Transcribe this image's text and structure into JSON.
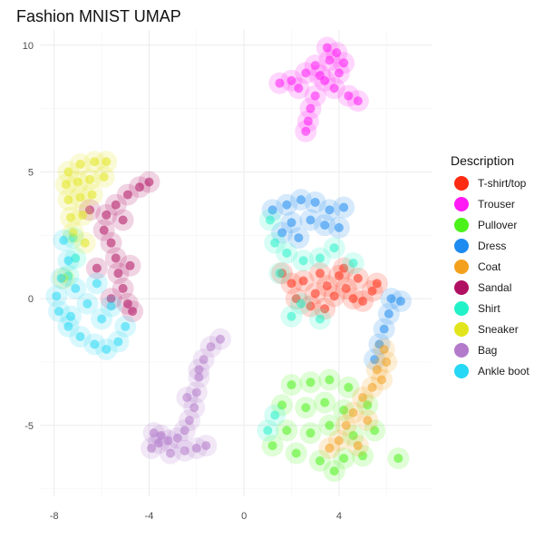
{
  "chart_data": {
    "type": "scatter",
    "title": "Fashion MNIST UMAP",
    "xlabel": "",
    "ylabel": "",
    "xlim": [
      -8.6,
      7.9
    ],
    "ylim": [
      -7.8,
      10.6
    ],
    "x_ticks": [
      -8,
      -4,
      0,
      4
    ],
    "y_ticks": [
      -5,
      0,
      5,
      10
    ],
    "grid": true,
    "legend": {
      "title": "Description",
      "position": "right"
    },
    "series": [
      {
        "name": "T-shirt/top",
        "color": "#FF2A12",
        "centroid": [
          4.0,
          0.5
        ],
        "points": [
          [
            2.5,
            0.7
          ],
          [
            3.2,
            1.0
          ],
          [
            4.0,
            0.9
          ],
          [
            4.8,
            0.8
          ],
          [
            5.4,
            0.3
          ],
          [
            3.0,
            0.2
          ],
          [
            3.8,
            0.1
          ],
          [
            4.6,
            0.0
          ],
          [
            2.0,
            0.6
          ],
          [
            3.5,
            0.5
          ],
          [
            4.3,
            0.4
          ],
          [
            1.6,
            1.0
          ],
          [
            2.8,
            -0.3
          ],
          [
            5.0,
            -0.1
          ],
          [
            4.2,
            1.2
          ],
          [
            3.4,
            -0.4
          ],
          [
            2.2,
            0.0
          ],
          [
            5.6,
            0.6
          ]
        ]
      },
      {
        "name": "Trouser",
        "color": "#FF1AF5",
        "centroid": [
          3.3,
          8.4
        ],
        "points": [
          [
            1.5,
            8.5
          ],
          [
            2.0,
            8.6
          ],
          [
            2.6,
            8.9
          ],
          [
            3.0,
            9.2
          ],
          [
            3.6,
            9.4
          ],
          [
            3.9,
            9.7
          ],
          [
            4.2,
            9.3
          ],
          [
            3.4,
            8.6
          ],
          [
            3.8,
            8.3
          ],
          [
            4.4,
            8.0
          ],
          [
            4.8,
            7.8
          ],
          [
            3.0,
            8.0
          ],
          [
            2.8,
            7.5
          ],
          [
            2.7,
            7.0
          ],
          [
            2.6,
            6.6
          ],
          [
            2.3,
            8.3
          ],
          [
            3.5,
            9.9
          ],
          [
            4.0,
            8.9
          ],
          [
            3.2,
            8.8
          ]
        ]
      },
      {
        "name": "Pullover",
        "color": "#4BF21A",
        "centroid": [
          3.2,
          -4.8
        ],
        "points": [
          [
            2.0,
            -3.4
          ],
          [
            2.8,
            -3.3
          ],
          [
            3.6,
            -3.2
          ],
          [
            4.4,
            -3.5
          ],
          [
            1.6,
            -4.2
          ],
          [
            2.6,
            -4.3
          ],
          [
            3.4,
            -4.1
          ],
          [
            4.2,
            -4.4
          ],
          [
            5.2,
            -4.2
          ],
          [
            1.8,
            -5.2
          ],
          [
            2.8,
            -5.3
          ],
          [
            3.6,
            -5.0
          ],
          [
            4.6,
            -5.4
          ],
          [
            5.5,
            -5.2
          ],
          [
            2.2,
            -6.1
          ],
          [
            3.2,
            -6.4
          ],
          [
            4.2,
            -6.3
          ],
          [
            5.0,
            -6.2
          ],
          [
            1.2,
            -5.8
          ],
          [
            3.8,
            -6.8
          ],
          [
            6.5,
            -6.3
          ]
        ]
      },
      {
        "name": "Dress",
        "color": "#1E8BF0",
        "centroid": [
          3.0,
          2.9
        ],
        "points": [
          [
            1.2,
            3.5
          ],
          [
            1.8,
            3.7
          ],
          [
            2.4,
            3.9
          ],
          [
            3.0,
            3.8
          ],
          [
            3.6,
            3.5
          ],
          [
            4.2,
            3.6
          ],
          [
            2.0,
            3.0
          ],
          [
            2.8,
            3.1
          ],
          [
            3.4,
            2.9
          ],
          [
            1.6,
            2.6
          ],
          [
            2.3,
            2.4
          ],
          [
            4.0,
            2.8
          ],
          [
            6.2,
            0.0
          ],
          [
            6.6,
            -0.1
          ],
          [
            6.1,
            -0.6
          ],
          [
            5.9,
            -1.2
          ],
          [
            5.7,
            -1.8
          ],
          [
            5.5,
            -2.4
          ]
        ]
      },
      {
        "name": "Coat",
        "color": "#F3A01C",
        "centroid": [
          4.4,
          -4.5
        ],
        "points": [
          [
            5.6,
            -2.8
          ],
          [
            5.4,
            -3.5
          ],
          [
            5.0,
            -3.9
          ],
          [
            4.6,
            -4.5
          ],
          [
            4.3,
            -5.0
          ],
          [
            5.2,
            -4.8
          ],
          [
            5.8,
            -3.2
          ],
          [
            4.0,
            -5.6
          ],
          [
            3.6,
            -5.9
          ],
          [
            4.8,
            -5.8
          ],
          [
            6.0,
            -2.5
          ],
          [
            5.9,
            -2.0
          ]
        ]
      },
      {
        "name": "Sandal",
        "color": "#B01062",
        "centroid": [
          -5.8,
          2.3
        ],
        "points": [
          [
            -4.0,
            4.6
          ],
          [
            -4.4,
            4.4
          ],
          [
            -4.9,
            4.1
          ],
          [
            -5.4,
            3.7
          ],
          [
            -5.8,
            3.3
          ],
          [
            -5.9,
            2.7
          ],
          [
            -5.6,
            2.2
          ],
          [
            -5.4,
            1.6
          ],
          [
            -5.3,
            1.0
          ],
          [
            -5.1,
            0.4
          ],
          [
            -4.9,
            -0.2
          ],
          [
            -4.7,
            -0.5
          ],
          [
            -6.2,
            1.2
          ],
          [
            -6.5,
            3.5
          ],
          [
            -5.1,
            3.1
          ],
          [
            -4.8,
            1.3
          ],
          [
            -5.6,
            0.0
          ]
        ]
      },
      {
        "name": "Shirt",
        "color": "#22F2C8",
        "centroid": [
          2.8,
          0.8
        ],
        "points": [
          [
            1.3,
            2.2
          ],
          [
            1.8,
            1.8
          ],
          [
            2.5,
            1.5
          ],
          [
            3.2,
            1.6
          ],
          [
            3.8,
            2.0
          ],
          [
            1.5,
            1.0
          ],
          [
            2.4,
            -0.2
          ],
          [
            2.0,
            -0.7
          ],
          [
            3.2,
            -0.8
          ],
          [
            1.1,
            3.1
          ],
          [
            -7.1,
            1.6
          ],
          [
            -7.4,
            0.9
          ],
          [
            1.3,
            -4.6
          ],
          [
            1.0,
            -5.2
          ],
          [
            -7.2,
            2.4
          ],
          [
            4.6,
            1.4
          ]
        ]
      },
      {
        "name": "Sneaker",
        "color": "#E2E51C",
        "centroid": [
          -6.5,
          4.4
        ],
        "points": [
          [
            -7.4,
            5.0
          ],
          [
            -6.9,
            5.3
          ],
          [
            -6.3,
            5.4
          ],
          [
            -5.8,
            5.4
          ],
          [
            -7.5,
            4.5
          ],
          [
            -7.0,
            4.6
          ],
          [
            -6.5,
            4.7
          ],
          [
            -5.9,
            4.8
          ],
          [
            -7.4,
            3.9
          ],
          [
            -6.9,
            4.0
          ],
          [
            -6.4,
            4.1
          ],
          [
            -7.3,
            3.2
          ],
          [
            -6.8,
            3.3
          ],
          [
            -7.2,
            2.6
          ],
          [
            -6.7,
            2.2
          ],
          [
            -7.6,
            0.8
          ]
        ]
      },
      {
        "name": "Bag",
        "color": "#B37ACB",
        "centroid": [
          -2.5,
          -4.7
        ],
        "points": [
          [
            -1.0,
            -1.6
          ],
          [
            -1.4,
            -1.9
          ],
          [
            -1.7,
            -2.4
          ],
          [
            -1.9,
            -3.1
          ],
          [
            -2.0,
            -3.7
          ],
          [
            -2.1,
            -4.3
          ],
          [
            -2.3,
            -4.8
          ],
          [
            -2.5,
            -5.2
          ],
          [
            -2.8,
            -5.5
          ],
          [
            -3.2,
            -5.6
          ],
          [
            -3.6,
            -5.7
          ],
          [
            -3.9,
            -5.9
          ],
          [
            -3.1,
            -6.1
          ],
          [
            -2.5,
            -6.0
          ],
          [
            -2.0,
            -5.9
          ],
          [
            -1.6,
            -5.8
          ],
          [
            -1.9,
            -2.8
          ],
          [
            -2.4,
            -3.9
          ],
          [
            -3.5,
            -5.4
          ],
          [
            -3.8,
            -5.3
          ]
        ]
      },
      {
        "name": "Ankle boot",
        "color": "#25D8F5",
        "centroid": [
          -6.8,
          -0.3
        ],
        "points": [
          [
            -7.6,
            2.3
          ],
          [
            -7.4,
            1.5
          ],
          [
            -7.7,
            0.8
          ],
          [
            -7.9,
            0.1
          ],
          [
            -7.8,
            -0.5
          ],
          [
            -7.4,
            -1.1
          ],
          [
            -6.9,
            -1.5
          ],
          [
            -6.3,
            -1.8
          ],
          [
            -5.8,
            -2.0
          ],
          [
            -5.3,
            -1.7
          ],
          [
            -5.0,
            -1.1
          ],
          [
            -6.6,
            -0.2
          ],
          [
            -6.0,
            -0.8
          ],
          [
            -7.1,
            0.4
          ],
          [
            -6.2,
            0.6
          ],
          [
            -5.6,
            -0.3
          ],
          [
            -7.3,
            -0.7
          ]
        ]
      }
    ]
  }
}
